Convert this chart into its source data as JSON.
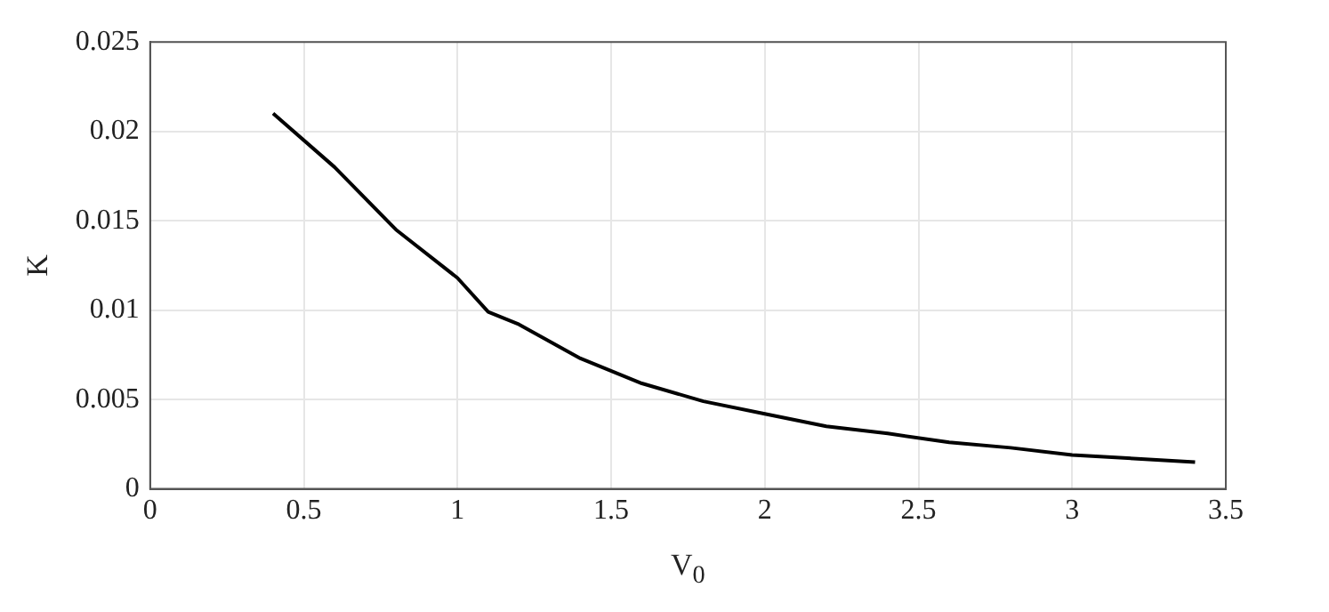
{
  "chart_data": {
    "type": "line",
    "xlabel": "V$_{0}$",
    "ylabel": "K",
    "x": [
      0.4,
      0.6,
      0.8,
      1.0,
      1.1,
      1.2,
      1.4,
      1.6,
      1.8,
      2.0,
      2.2,
      2.4,
      2.6,
      2.8,
      3.0,
      3.2,
      3.4
    ],
    "series": [
      {
        "color": "#000000",
        "values": [
          0.021,
          0.018,
          0.0145,
          0.0118,
          0.0099,
          0.0092,
          0.0073,
          0.0059,
          0.0049,
          0.0042,
          0.0035,
          0.0031,
          0.0026,
          0.0023,
          0.0019,
          0.0017,
          0.0015
        ]
      }
    ],
    "xlim": [
      0,
      3.5
    ],
    "xticks": [
      0,
      0.5,
      1,
      1.5,
      2,
      2.5,
      3,
      3.5
    ],
    "ylim": [
      0,
      0.025
    ],
    "yticks": [
      0,
      0.005,
      0.01,
      0.015,
      0.02,
      0.025
    ],
    "grid": true,
    "legend": false,
    "marker": "none",
    "line_style": "solid"
  }
}
